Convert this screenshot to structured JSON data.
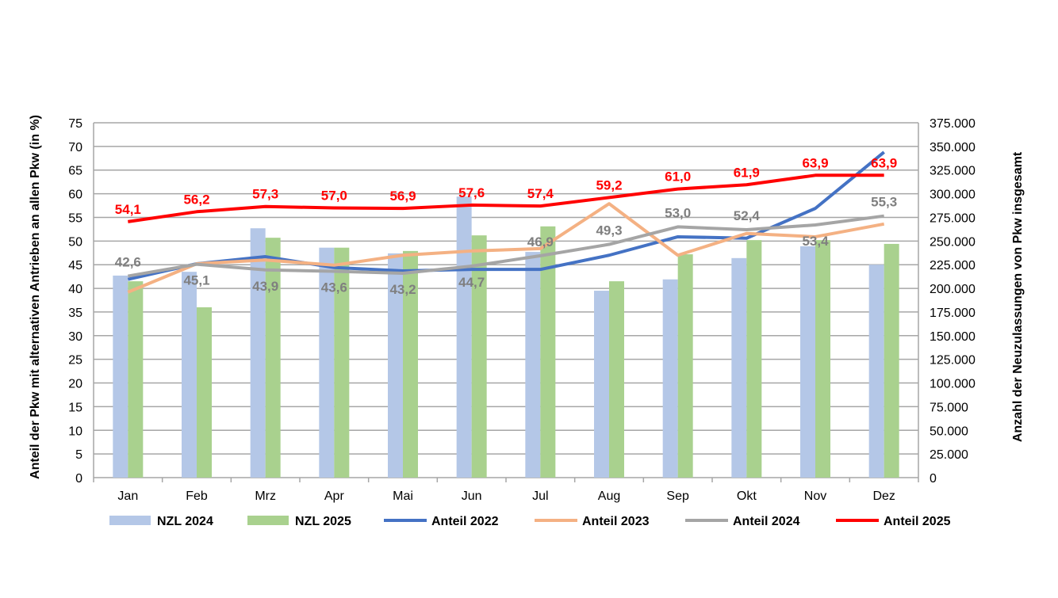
{
  "chart_data": {
    "type": "bar+line",
    "title": "",
    "categories": [
      "Jan",
      "Feb",
      "Mrz",
      "Apr",
      "Mai",
      "Jun",
      "Jul",
      "Aug",
      "Sep",
      "Okt",
      "Nov",
      "Dez"
    ],
    "ylabel": "Anteil der Pkw mit alternativen Antrieben an allen Pkw (in %)",
    "y2label": "Anzahl der Neuzulassungen von Pkw insgesamt",
    "ylim": [
      0,
      75
    ],
    "y2lim": [
      0,
      375000
    ],
    "yticks": [
      "0",
      "5",
      "10",
      "15",
      "20",
      "25",
      "30",
      "35",
      "40",
      "45",
      "50",
      "55",
      "60",
      "65",
      "70",
      "75"
    ],
    "y2ticks": [
      "0",
      "25.000",
      "50.000",
      "75.000",
      "100.000",
      "125.000",
      "150.000",
      "175.000",
      "200.000",
      "225.000",
      "250.000",
      "275.000",
      "300.000",
      "325.000",
      "350.000",
      "375.000"
    ],
    "grid": true,
    "legend_position": "bottom",
    "bar_series": [
      {
        "name": "NZL 2024",
        "color": "#b4c7e7",
        "axis": "right",
        "values": [
          213500,
          217500,
          263500,
          243000,
          237000,
          297000,
          238500,
          197500,
          209500,
          232000,
          244500,
          225000
        ]
      },
      {
        "name": "NZL 2025",
        "color": "#a9d18e",
        "axis": "right",
        "values": [
          207500,
          180000,
          253500,
          243000,
          239500,
          256000,
          265500,
          207500,
          236000,
          251000,
          251000,
          247000
        ]
      }
    ],
    "line_series": [
      {
        "name": "Anteil 2022",
        "color": "#4472c4",
        "axis": "left",
        "values": [
          41.9,
          45.2,
          46.7,
          44.4,
          43.7,
          44.0,
          44.0,
          47.0,
          50.9,
          50.6,
          56.9,
          68.8
        ],
        "labels": null
      },
      {
        "name": "Anteil 2023",
        "color": "#f4b183",
        "axis": "left",
        "values": [
          39.2,
          45.2,
          46.0,
          44.9,
          47.0,
          47.9,
          48.4,
          57.9,
          47.0,
          51.6,
          50.9,
          53.6
        ],
        "labels": null
      },
      {
        "name": "Anteil 2024",
        "color": "#a5a5a5",
        "label_color": "#7f7f7f",
        "axis": "left",
        "values": [
          42.6,
          45.1,
          43.9,
          43.6,
          43.2,
          44.7,
          46.9,
          49.3,
          53.0,
          52.4,
          53.4,
          55.3
        ],
        "labels": [
          "42,6",
          "45,1",
          "43,9",
          "43,6",
          "43,2",
          "44,7",
          "46,9",
          "49,3",
          "53,0",
          "52,4",
          "53,4",
          "55,3"
        ]
      },
      {
        "name": "Anteil 2025",
        "color": "#ff0000",
        "label_color": "#ff0000",
        "axis": "left",
        "values": [
          54.1,
          56.2,
          57.3,
          57.0,
          56.9,
          57.6,
          57.4,
          59.2,
          61.0,
          61.9,
          63.9,
          63.9
        ],
        "labels": [
          "54,1",
          "56,2",
          "57,3",
          "57,0",
          "56,9",
          "57,6",
          "57,4",
          "59,2",
          "61,0",
          "61,9",
          "63,9",
          "63,9"
        ]
      }
    ]
  }
}
